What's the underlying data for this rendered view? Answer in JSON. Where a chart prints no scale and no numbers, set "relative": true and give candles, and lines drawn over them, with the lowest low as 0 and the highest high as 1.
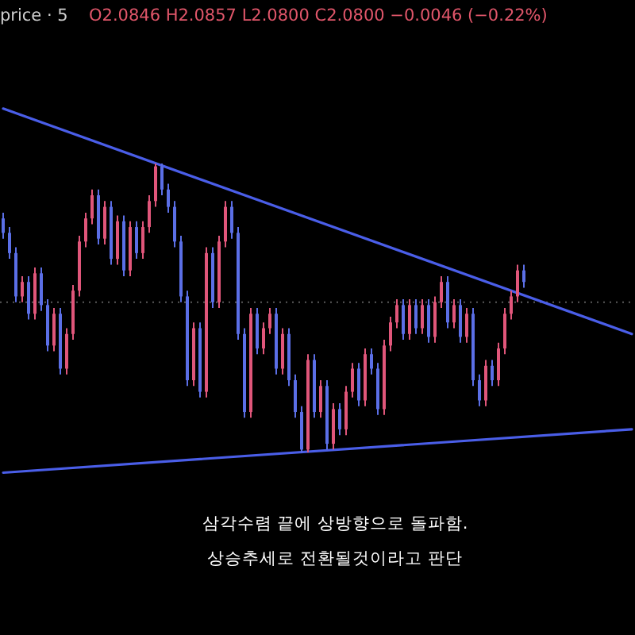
{
  "chart_data": {
    "type": "candlestick",
    "relative": true,
    "annotations": [
      "price · 5",
      "O2.0846 H2.0857 L2.0800 C2.0800 −0.0046 (−0.22%)",
      "삼각수렴 끝에 상방향으로 돌파함.",
      "상승추세로 전환될것이라고 판단"
    ],
    "categories": [
      null,
      null,
      null,
      null,
      null,
      null,
      null,
      null,
      null,
      null,
      null,
      null,
      null,
      null,
      null,
      null,
      null,
      null,
      null,
      null,
      null,
      null,
      null,
      null,
      null,
      null,
      null,
      null,
      null,
      null,
      null,
      null,
      null,
      null,
      null,
      null,
      null,
      null,
      null,
      null,
      null,
      null,
      null,
      null,
      null,
      null,
      null,
      null,
      null,
      null,
      null,
      null,
      null,
      null,
      null,
      null,
      null,
      null,
      null,
      null,
      null,
      null,
      null,
      null,
      null,
      null,
      null,
      null,
      null,
      null,
      null,
      null,
      null,
      null,
      null,
      null,
      null,
      null,
      null,
      null,
      null,
      null,
      null,
      null,
      null,
      null,
      null,
      null,
      null,
      null,
      null,
      null,
      null,
      null,
      null,
      null,
      null,
      null,
      null,
      null
    ],
    "ohlc": [
      [
        0.81,
        0.83,
        0.74,
        0.76
      ],
      [
        0.76,
        0.78,
        0.67,
        0.69
      ],
      [
        0.69,
        0.71,
        0.52,
        0.54
      ],
      [
        0.54,
        0.61,
        0.52,
        0.59
      ],
      [
        0.59,
        0.61,
        0.46,
        0.48
      ],
      [
        0.48,
        0.64,
        0.46,
        0.62
      ],
      [
        0.62,
        0.64,
        0.49,
        0.51
      ],
      [
        0.51,
        0.53,
        0.35,
        0.37
      ],
      [
        0.37,
        0.5,
        0.35,
        0.48
      ],
      [
        0.48,
        0.5,
        0.27,
        0.29
      ],
      [
        0.29,
        0.43,
        0.27,
        0.41
      ],
      [
        0.41,
        0.58,
        0.39,
        0.56
      ],
      [
        0.56,
        0.75,
        0.54,
        0.73
      ],
      [
        0.73,
        0.83,
        0.71,
        0.81
      ],
      [
        0.81,
        0.91,
        0.79,
        0.89
      ],
      [
        0.89,
        0.91,
        0.72,
        0.74
      ],
      [
        0.74,
        0.87,
        0.72,
        0.85
      ],
      [
        0.85,
        0.87,
        0.65,
        0.67
      ],
      [
        0.67,
        0.82,
        0.65,
        0.8
      ],
      [
        0.8,
        0.82,
        0.61,
        0.63
      ],
      [
        0.63,
        0.8,
        0.61,
        0.78
      ],
      [
        0.78,
        0.8,
        0.67,
        0.69
      ],
      [
        0.69,
        0.8,
        0.67,
        0.78
      ],
      [
        0.78,
        0.89,
        0.76,
        0.87
      ],
      [
        0.87,
        1.0,
        0.85,
        0.99
      ],
      [
        0.99,
        1.0,
        0.89,
        0.91
      ],
      [
        0.91,
        0.93,
        0.83,
        0.85
      ],
      [
        0.85,
        0.87,
        0.71,
        0.73
      ],
      [
        0.73,
        0.75,
        0.52,
        0.54
      ],
      [
        0.54,
        0.56,
        0.23,
        0.25
      ],
      [
        0.25,
        0.45,
        0.23,
        0.43
      ],
      [
        0.43,
        0.45,
        0.19,
        0.21
      ],
      [
        0.21,
        0.71,
        0.19,
        0.69
      ],
      [
        0.69,
        0.71,
        0.5,
        0.52
      ],
      [
        0.52,
        0.75,
        0.5,
        0.73
      ],
      [
        0.73,
        0.87,
        0.71,
        0.85
      ],
      [
        0.85,
        0.87,
        0.74,
        0.76
      ],
      [
        0.76,
        0.78,
        0.39,
        0.41
      ],
      [
        0.41,
        0.43,
        0.12,
        0.14
      ],
      [
        0.14,
        0.5,
        0.12,
        0.48
      ],
      [
        0.48,
        0.5,
        0.34,
        0.36
      ],
      [
        0.36,
        0.45,
        0.34,
        0.43
      ],
      [
        0.43,
        0.5,
        0.41,
        0.48
      ],
      [
        0.48,
        0.5,
        0.27,
        0.29
      ],
      [
        0.29,
        0.43,
        0.27,
        0.41
      ],
      [
        0.41,
        0.43,
        0.23,
        0.25
      ],
      [
        0.25,
        0.27,
        0.12,
        0.14
      ],
      [
        0.14,
        0.16,
        0.0,
        0.01
      ],
      [
        0.01,
        0.34,
        0.0,
        0.32
      ],
      [
        0.32,
        0.34,
        0.12,
        0.14
      ],
      [
        0.14,
        0.25,
        0.12,
        0.23
      ],
      [
        0.23,
        0.25,
        0.01,
        0.03
      ],
      [
        0.03,
        0.17,
        0.01,
        0.15
      ],
      [
        0.15,
        0.17,
        0.06,
        0.08
      ],
      [
        0.08,
        0.23,
        0.06,
        0.21
      ],
      [
        0.21,
        0.31,
        0.19,
        0.29
      ],
      [
        0.29,
        0.31,
        0.16,
        0.18
      ],
      [
        0.18,
        0.36,
        0.16,
        0.34
      ],
      [
        0.34,
        0.36,
        0.27,
        0.29
      ],
      [
        0.29,
        0.31,
        0.13,
        0.15
      ],
      [
        0.15,
        0.39,
        0.13,
        0.37
      ],
      [
        0.37,
        0.47,
        0.35,
        0.45
      ],
      [
        0.45,
        0.53,
        0.43,
        0.51
      ],
      [
        0.51,
        0.53,
        0.39,
        0.41
      ],
      [
        0.41,
        0.53,
        0.39,
        0.51
      ],
      [
        0.51,
        0.53,
        0.41,
        0.43
      ],
      [
        0.43,
        0.53,
        0.41,
        0.51
      ],
      [
        0.51,
        0.53,
        0.38,
        0.4
      ],
      [
        0.4,
        0.54,
        0.38,
        0.52
      ],
      [
        0.52,
        0.61,
        0.5,
        0.59
      ],
      [
        0.59,
        0.61,
        0.43,
        0.45
      ],
      [
        0.45,
        0.53,
        0.43,
        0.51
      ],
      [
        0.51,
        0.53,
        0.38,
        0.4
      ],
      [
        0.4,
        0.5,
        0.38,
        0.48
      ],
      [
        0.48,
        0.5,
        0.23,
        0.25
      ],
      [
        0.25,
        0.27,
        0.16,
        0.18
      ],
      [
        0.18,
        0.32,
        0.16,
        0.3
      ],
      [
        0.3,
        0.32,
        0.23,
        0.25
      ],
      [
        0.25,
        0.38,
        0.23,
        0.36
      ],
      [
        0.36,
        0.5,
        0.34,
        0.48
      ],
      [
        0.48,
        0.56,
        0.46,
        0.54
      ],
      [
        0.54,
        0.65,
        0.52,
        0.63
      ],
      [
        0.63,
        0.65,
        0.57,
        0.59
      ],
      null,
      null,
      null,
      null,
      null,
      null,
      null,
      null,
      null,
      null,
      null,
      null,
      null,
      null,
      null,
      null,
      null
    ],
    "series": [
      {
        "type": "line",
        "color": "#4a5ee8",
        "values": [
          1.19,
          null,
          null,
          null,
          null,
          null,
          null,
          null,
          null,
          null,
          null,
          null,
          null,
          null,
          null,
          null,
          null,
          null,
          null,
          null,
          null,
          null,
          null,
          null,
          null,
          null,
          null,
          null,
          null,
          null,
          null,
          null,
          null,
          null,
          null,
          null,
          null,
          null,
          null,
          null,
          null,
          null,
          null,
          null,
          null,
          null,
          null,
          null,
          null,
          null,
          null,
          null,
          null,
          null,
          null,
          null,
          null,
          null,
          null,
          null,
          null,
          null,
          null,
          null,
          null,
          null,
          null,
          null,
          null,
          null,
          null,
          null,
          null,
          null,
          null,
          null,
          null,
          null,
          null,
          null,
          null,
          null,
          null,
          null,
          null,
          null,
          null,
          null,
          null,
          null,
          null,
          null,
          null,
          null,
          null,
          null,
          null,
          null,
          null,
          0.41
        ]
      },
      {
        "type": "line",
        "color": "#4a5ee8",
        "values": [
          -0.07,
          null,
          null,
          null,
          null,
          null,
          null,
          null,
          null,
          null,
          null,
          null,
          null,
          null,
          null,
          null,
          null,
          null,
          null,
          null,
          null,
          null,
          null,
          null,
          null,
          null,
          null,
          null,
          null,
          null,
          null,
          null,
          null,
          null,
          null,
          null,
          null,
          null,
          null,
          null,
          null,
          null,
          null,
          null,
          null,
          null,
          null,
          null,
          null,
          null,
          null,
          null,
          null,
          null,
          null,
          null,
          null,
          null,
          null,
          null,
          null,
          null,
          null,
          null,
          null,
          null,
          null,
          null,
          null,
          null,
          null,
          null,
          null,
          null,
          null,
          null,
          null,
          null,
          null,
          null,
          null,
          null,
          null,
          null,
          null,
          null,
          null,
          null,
          null,
          null,
          null,
          null,
          null,
          null,
          null,
          null,
          null,
          null,
          null,
          0.08
        ]
      }
    ],
    "ref_lines": [
      {
        "axis": "y",
        "value": 0.52,
        "color": "#5a5a5a",
        "line_style": "dotted"
      }
    ]
  }
}
